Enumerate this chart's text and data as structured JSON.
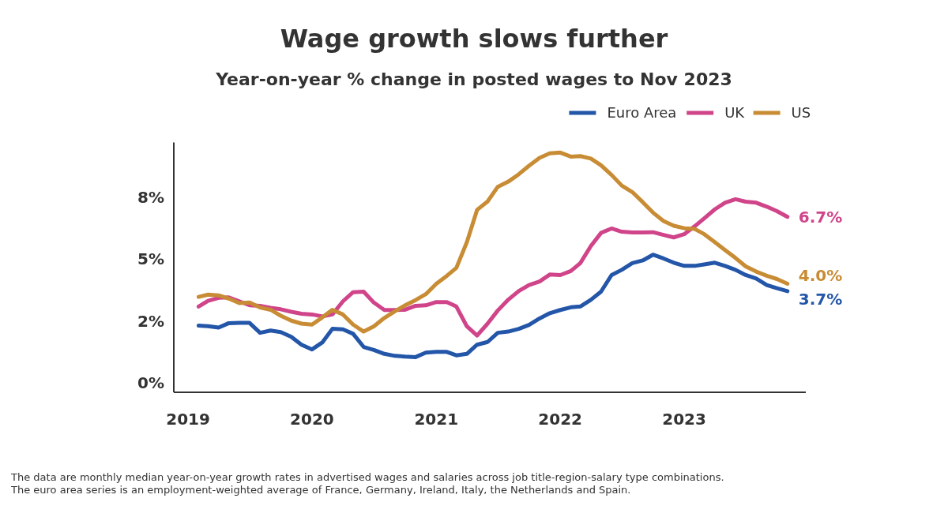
{
  "chart_data": {
    "type": "line",
    "title": "Wage growth slows further",
    "subtitle": "Year-on-year % change in posted wages to Nov 2023",
    "x": [
      "2019-02",
      "2019-03",
      "2019-04",
      "2019-05",
      "2019-06",
      "2019-07",
      "2019-08",
      "2019-09",
      "2019-10",
      "2019-11",
      "2019-12",
      "2020-01",
      "2020-02",
      "2020-03",
      "2020-04",
      "2020-05",
      "2020-06",
      "2020-07",
      "2020-08",
      "2020-09",
      "2020-10",
      "2020-11",
      "2020-12",
      "2021-01",
      "2021-02",
      "2021-03",
      "2021-04",
      "2021-05",
      "2021-06",
      "2021-07",
      "2021-08",
      "2021-09",
      "2021-10",
      "2021-11",
      "2021-12",
      "2022-01",
      "2022-02",
      "2022-03",
      "2022-04",
      "2022-05",
      "2022-06",
      "2022-07",
      "2022-08",
      "2022-09",
      "2022-10",
      "2022-11",
      "2022-12",
      "2023-01",
      "2023-02",
      "2023-03",
      "2023-04",
      "2023-05",
      "2023-06",
      "2023-07",
      "2023-08",
      "2023-09",
      "2023-10",
      "2023-11"
    ],
    "series": [
      {
        "name": "Euro Area",
        "color": "#2356a8",
        "values": [
          2.31,
          2.29,
          2.23,
          2.41,
          2.42,
          2.42,
          2.02,
          2.11,
          2.05,
          1.86,
          1.54,
          1.35,
          1.64,
          2.18,
          2.16,
          1.98,
          1.45,
          1.33,
          1.17,
          1.09,
          1.06,
          1.04,
          1.22,
          1.25,
          1.25,
          1.11,
          1.17,
          1.54,
          1.65,
          2.02,
          2.07,
          2.18,
          2.34,
          2.6,
          2.81,
          2.94,
          3.05,
          3.08,
          3.35,
          3.68,
          4.35,
          4.56,
          4.83,
          4.94,
          5.17,
          5.02,
          4.85,
          4.72,
          4.72,
          4.78,
          4.85,
          4.72,
          4.56,
          4.35,
          4.21,
          3.95,
          3.82,
          3.7
        ]
      },
      {
        "name": "UK",
        "color": "#d0448a",
        "values": [
          3.08,
          3.31,
          3.43,
          3.45,
          3.29,
          3.13,
          3.11,
          3.03,
          2.97,
          2.87,
          2.79,
          2.76,
          2.68,
          2.76,
          3.29,
          3.66,
          3.68,
          3.24,
          2.94,
          2.94,
          2.95,
          3.11,
          3.13,
          3.26,
          3.26,
          3.08,
          2.28,
          1.91,
          2.39,
          2.92,
          3.36,
          3.71,
          3.95,
          4.09,
          4.37,
          4.35,
          4.51,
          4.83,
          5.52,
          6.05,
          6.23,
          6.1,
          6.07,
          6.07,
          6.08,
          5.97,
          5.87,
          6.0,
          6.32,
          6.64,
          7.0,
          7.27,
          7.41,
          7.31,
          7.27,
          7.11,
          6.93,
          6.7
        ]
      },
      {
        "name": "US",
        "color": "#c88c34",
        "values": [
          3.47,
          3.56,
          3.53,
          3.4,
          3.22,
          3.24,
          3.04,
          2.95,
          2.71,
          2.51,
          2.39,
          2.35,
          2.65,
          2.95,
          2.76,
          2.35,
          2.07,
          2.28,
          2.62,
          2.89,
          3.13,
          3.34,
          3.58,
          4.0,
          4.32,
          4.64,
          5.68,
          6.98,
          7.32,
          7.91,
          8.12,
          8.42,
          8.76,
          9.08,
          9.26,
          9.29,
          9.13,
          9.15,
          9.05,
          8.78,
          8.39,
          7.96,
          7.7,
          7.29,
          6.87,
          6.53,
          6.34,
          6.24,
          6.21,
          6.0,
          5.68,
          5.36,
          5.04,
          4.7,
          4.49,
          4.32,
          4.19,
          4.0
        ]
      }
    ],
    "xlim": [
      "2018-11-20",
      "2023-12-25"
    ],
    "xticks": [
      "2019",
      "2020",
      "2021",
      "2022",
      "2023"
    ],
    "ylim": [
      -0.38,
      9.7
    ],
    "yticks": [
      {
        "value": 0,
        "label": "0%"
      },
      {
        "value": 2.5,
        "label": "2%"
      },
      {
        "value": 5,
        "label": "5%"
      },
      {
        "value": 7.5,
        "label": "8%"
      }
    ],
    "grid": false,
    "legend": "top right",
    "marker": "none",
    "line_style": "solid",
    "annotations": [
      {
        "text": "6.7%",
        "x": "2023-11",
        "y": 6.7
      },
      {
        "text": "4.0%",
        "x": "2023-11",
        "y": 4.0
      },
      {
        "text": "3.7%",
        "x": "2023-11",
        "y": 3.7
      },
      "The data are monthly median year-on-year growth rates in advertised wages and salaries across job title-region-salary type combinations.",
      "The euro area series is an employment-weighted average of France, Germany, Ireland, Italy, the Netherlands and Spain."
    ]
  }
}
